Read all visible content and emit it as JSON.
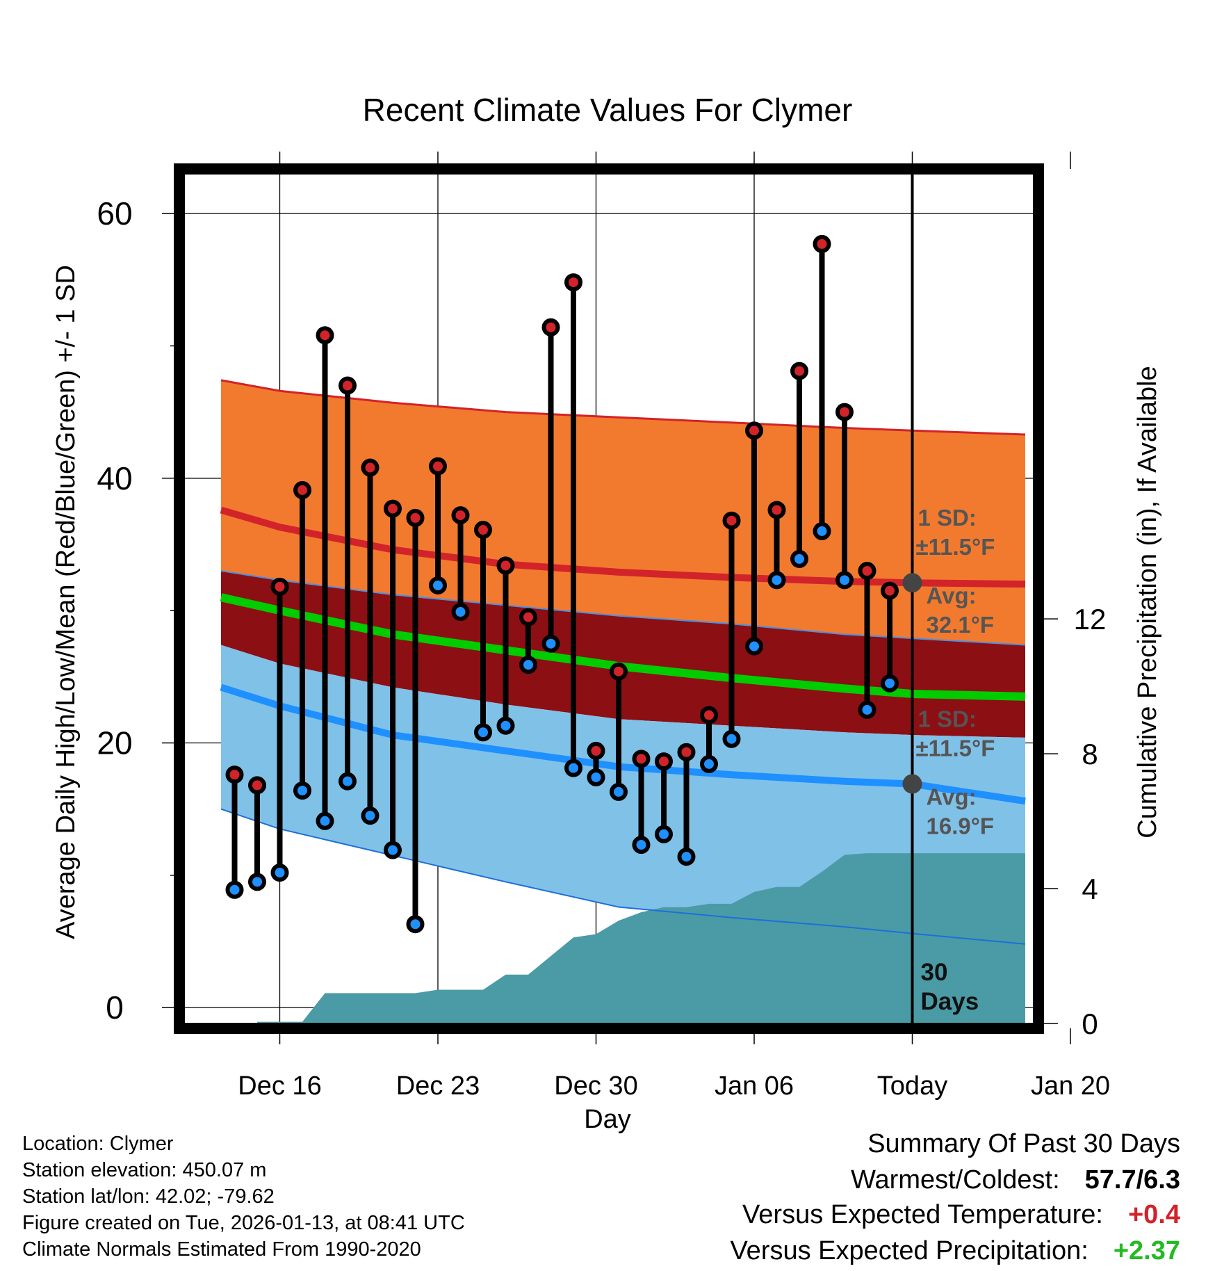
{
  "chart_data": {
    "type": "line",
    "title": "Recent Climate Values For Clymer",
    "xlabel": "Day",
    "ylabel_left": "Average Daily High/Low/Mean (Red/Blue/Green) +/- 1 SD",
    "ylabel_right": "Cumulative Precipitation (in), If Available",
    "xlim": [
      -4.2,
      33.4
    ],
    "ylim": [
      -1.2,
      63
    ],
    "ylim_right": [
      0,
      25.2
    ],
    "x_ticks": [
      {
        "day": 0,
        "label": "Dec 16"
      },
      {
        "day": 7,
        "label": "Dec 23"
      },
      {
        "day": 14,
        "label": "Dec 30"
      },
      {
        "day": 21,
        "label": "Jan 06"
      },
      {
        "day": 28,
        "label": "Today"
      },
      {
        "day": 35,
        "label": "Jan 20"
      }
    ],
    "y_ticks_left": [
      0,
      20,
      40,
      60
    ],
    "y_minor_ticks_left": [
      10,
      30,
      50
    ],
    "y_ticks_right": [
      0,
      4,
      8,
      12
    ],
    "today_marker": {
      "day": 28,
      "label_line1": "30",
      "label_line2": "Days"
    },
    "normals": {
      "days": [
        -2.6,
        0,
        5,
        10,
        15,
        20,
        25,
        28,
        33
      ],
      "high_avg": [
        37.6,
        36.3,
        34.6,
        33.5,
        32.9,
        32.5,
        32.2,
        32.1,
        32.0
      ],
      "high_upper": [
        47.4,
        46.6,
        45.7,
        45.0,
        44.6,
        44.2,
        43.8,
        43.6,
        43.3
      ],
      "low_avg": [
        24.2,
        22.8,
        20.6,
        19.4,
        18.2,
        17.6,
        17.1,
        16.9,
        15.6
      ],
      "low_lower": [
        15.0,
        13.5,
        11.5,
        9.5,
        7.6,
        6.8,
        6.1,
        5.6,
        4.8
      ],
      "mean_avg": [
        31.0,
        30.0,
        28.2,
        27.0,
        25.8,
        24.9,
        24.1,
        23.7,
        23.5
      ],
      "mean_upper": [
        33.0,
        32.3,
        31.2,
        30.4,
        29.6,
        29.0,
        28.2,
        27.9,
        27.4
      ],
      "mean_lower": [
        27.4,
        26.0,
        24.2,
        22.9,
        21.8,
        21.3,
        20.8,
        20.6,
        20.4
      ]
    },
    "observations": {
      "days": [
        -2,
        -1,
        0,
        1,
        2,
        3,
        4,
        5,
        6,
        7,
        8,
        9,
        10,
        11,
        12,
        13,
        14,
        15,
        16,
        17,
        18,
        19,
        20,
        21,
        22,
        23,
        24,
        25,
        26,
        27
      ],
      "high": [
        17.6,
        16.8,
        31.8,
        39.1,
        50.8,
        47.0,
        40.8,
        37.7,
        37.0,
        40.9,
        37.2,
        36.1,
        33.4,
        29.5,
        51.4,
        54.8,
        19.4,
        25.4,
        18.8,
        18.6,
        19.3,
        22.1,
        36.8,
        43.6,
        37.6,
        48.1,
        57.7,
        45.0,
        33.0,
        31.5
      ],
      "low": [
        8.9,
        9.5,
        10.2,
        16.4,
        14.1,
        17.1,
        14.5,
        11.9,
        6.3,
        31.9,
        29.9,
        20.8,
        21.3,
        25.9,
        27.5,
        18.1,
        17.4,
        16.3,
        12.3,
        13.1,
        11.4,
        18.4,
        20.3,
        27.3,
        32.3,
        33.9,
        36.0,
        32.3,
        22.5,
        24.5
      ]
    },
    "precipitation": {
      "days": [
        -1,
        1,
        2,
        2.8,
        6,
        7,
        9,
        10,
        11,
        12,
        13,
        14,
        15,
        16,
        17,
        18,
        19,
        20,
        21,
        22,
        23,
        24,
        25,
        26,
        27,
        28,
        33
      ],
      "cumulative": [
        0.05,
        0.05,
        0.9,
        0.9,
        0.9,
        1.0,
        1.0,
        1.45,
        1.45,
        2.0,
        2.55,
        2.65,
        3.05,
        3.3,
        3.45,
        3.45,
        3.55,
        3.55,
        3.9,
        4.05,
        4.05,
        4.5,
        5.0,
        5.05,
        5.05,
        5.05,
        5.05
      ]
    },
    "annotations": [
      {
        "series": "high",
        "sd_label": "1 SD:",
        "sd_value": "±11.5°F",
        "avg_label": "Avg:",
        "avg_value": "32.1°F",
        "avg": 32.1
      },
      {
        "series": "low",
        "sd_label": "1 SD:",
        "sd_value": "±11.5°F",
        "avg_label": "Avg:",
        "avg_value": "16.9°F",
        "avg": 16.9
      }
    ],
    "colors": {
      "high_band": "#f27a2e",
      "high_line": "#d2232a",
      "mean_band": "#8c0f14",
      "mean_line": "#00cc00",
      "low_band": "#80c1e8",
      "low_line": "#1e90ff",
      "precip": "#4a9ba6",
      "high_dot": "#d2232a",
      "low_dot": "#1e90ff",
      "annotation_text": "#555555",
      "today_dot": "#444444"
    }
  },
  "station": {
    "location": "Location: Clymer",
    "elevation": "Station elevation: 450.07 m",
    "latlon": "Station lat/lon: 42.02; -79.62",
    "created": "Figure created on Tue, 2026-01-13, at 08:41 UTC",
    "normals_note": "Climate Normals Estimated From 1990-2020"
  },
  "summary": {
    "heading": "Summary Of Past 30 Days",
    "warmest_label": "Warmest/Coldest:",
    "warmest_value": "57.7/6.3",
    "temp_label": "Versus Expected Temperature:",
    "temp_value": "+0.4",
    "temp_color": "#d2232a",
    "precip_label": "Versus Expected Precipitation:",
    "precip_value": "+2.37",
    "precip_color": "#22bb22"
  }
}
